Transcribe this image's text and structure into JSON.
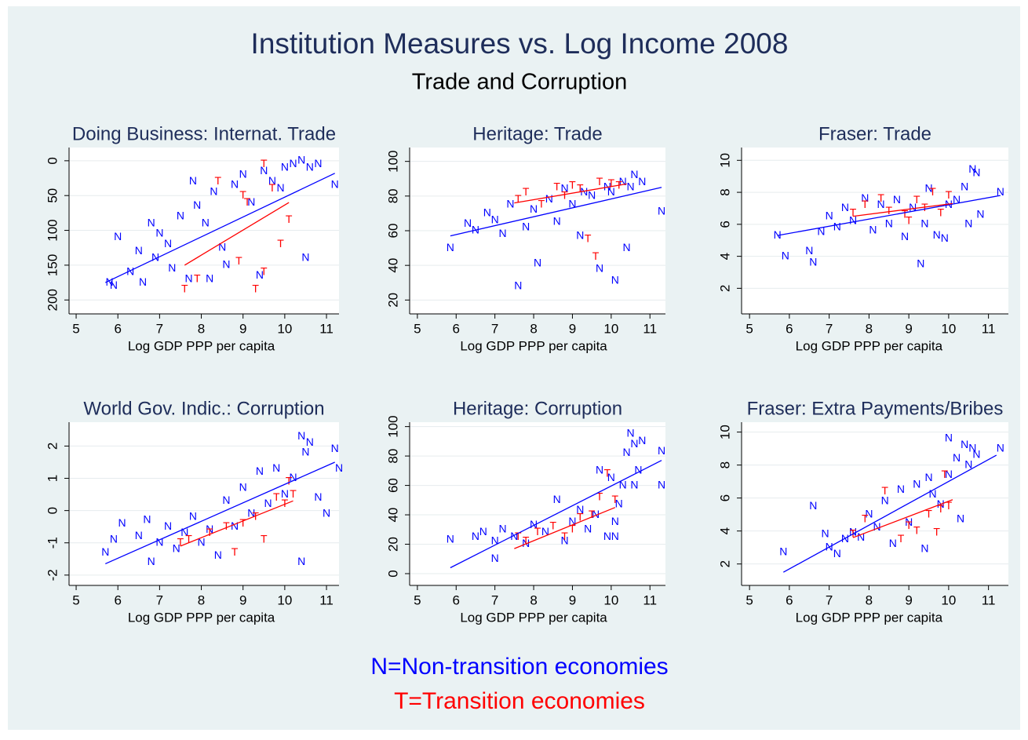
{
  "title": "Institution Measures vs. Log Income 2008",
  "subtitle": "Trade and Corruption",
  "legend": [
    {
      "text": "N=Non-transition economies",
      "color": "#0000ff"
    },
    {
      "text": "T=Transition economies",
      "color": "#ff0000"
    }
  ],
  "chart_data": [
    {
      "type": "scatter",
      "title": "Doing Business: Internat. Trade",
      "xlabel": "Log GDP PPP per capita",
      "xlim": [
        4.83,
        11.3
      ],
      "xticks": [
        5,
        6,
        7,
        8,
        9,
        10,
        11
      ],
      "ylim": [
        220,
        -19
      ],
      "yticks": [
        0,
        50,
        100,
        150,
        200
      ],
      "grid": true,
      "series": [
        {
          "name": "N",
          "color": "#0000ff",
          "x": [
            5.8,
            5.9,
            6.0,
            6.3,
            6.6,
            6.8,
            6.9,
            7.0,
            7.2,
            7.3,
            7.5,
            7.7,
            7.9,
            8.1,
            8.3,
            8.5,
            8.6,
            8.8,
            9.0,
            9.2,
            9.4,
            9.5,
            9.7,
            9.9,
            10.0,
            10.2,
            10.4,
            10.6,
            10.8,
            10.5,
            11.2,
            7.8,
            8.2,
            6.5
          ],
          "values": [
            175,
            180,
            110,
            160,
            175,
            90,
            140,
            105,
            120,
            155,
            80,
            170,
            65,
            90,
            45,
            125,
            150,
            35,
            20,
            60,
            165,
            15,
            30,
            40,
            10,
            5,
            0,
            10,
            5,
            140,
            35,
            30,
            170,
            130
          ]
        },
        {
          "name": "T",
          "color": "#ff0000",
          "x": [
            7.6,
            7.9,
            8.4,
            8.9,
            9.1,
            9.3,
            9.5,
            9.5,
            9.7,
            9.9,
            10.1,
            9.0
          ],
          "values": [
            185,
            170,
            30,
            145,
            60,
            185,
            160,
            5,
            40,
            120,
            85,
            50
          ]
        }
      ],
      "fits": [
        {
          "color": "#0000ff",
          "x": [
            5.7,
            11.2
          ],
          "values": [
            175,
            18
          ]
        },
        {
          "color": "#ff0000",
          "x": [
            7.6,
            10.1
          ],
          "values": [
            150,
            60
          ]
        }
      ]
    },
    {
      "type": "scatter",
      "title": "Heritage: Trade",
      "xlabel": "Log GDP PPP per capita",
      "xlim": [
        4.8,
        11.4
      ],
      "xticks": [
        5,
        6,
        7,
        8,
        9,
        10,
        11
      ],
      "ylim": [
        12,
        108
      ],
      "yticks": [
        20,
        40,
        60,
        80,
        100
      ],
      "grid": true,
      "series": [
        {
          "name": "N",
          "color": "#0000ff",
          "x": [
            5.85,
            6.3,
            6.5,
            6.8,
            7.0,
            7.2,
            7.4,
            7.6,
            7.8,
            8.0,
            8.1,
            8.4,
            8.6,
            8.8,
            9.0,
            9.2,
            9.5,
            9.7,
            9.9,
            10.0,
            10.1,
            10.3,
            10.4,
            10.5,
            10.6,
            10.8,
            11.3,
            9.3
          ],
          "values": [
            50,
            64,
            60,
            70,
            66,
            58,
            75,
            28,
            62,
            72,
            41,
            78,
            65,
            84,
            75,
            57,
            80,
            38,
            85,
            82,
            31,
            88,
            50,
            85,
            92,
            88,
            71,
            82
          ]
        },
        {
          "name": "T",
          "color": "#ff0000",
          "x": [
            7.6,
            7.8,
            8.2,
            8.6,
            8.8,
            9.0,
            9.2,
            9.4,
            9.6,
            9.7,
            10.0,
            10.2
          ],
          "values": [
            78,
            82,
            75,
            85,
            80,
            86,
            84,
            55,
            45,
            88,
            87,
            86
          ]
        }
      ],
      "fits": [
        {
          "color": "#0000ff",
          "x": [
            5.85,
            11.3
          ],
          "values": [
            57,
            85
          ]
        },
        {
          "color": "#ff0000",
          "x": [
            7.5,
            10.4
          ],
          "values": [
            76,
            87
          ]
        }
      ]
    },
    {
      "type": "scatter",
      "title": "Fraser: Trade",
      "xlabel": "Log GDP PPP per capita",
      "xlim": [
        4.8,
        11.5
      ],
      "xticks": [
        5,
        6,
        7,
        8,
        9,
        10,
        11
      ],
      "ylim": [
        0.4,
        10.8
      ],
      "yticks": [
        2,
        4,
        6,
        8,
        10
      ],
      "grid": true,
      "series": [
        {
          "name": "N",
          "color": "#0000ff",
          "x": [
            5.7,
            5.9,
            6.5,
            6.6,
            6.8,
            7.0,
            7.2,
            7.4,
            7.6,
            7.9,
            8.1,
            8.3,
            8.5,
            8.7,
            8.9,
            9.1,
            9.3,
            9.4,
            9.5,
            9.7,
            9.9,
            10.0,
            10.2,
            10.4,
            10.5,
            10.6,
            10.8,
            11.3,
            10.7
          ],
          "values": [
            5.3,
            4.0,
            4.3,
            3.6,
            5.5,
            6.5,
            5.8,
            7.0,
            6.2,
            7.6,
            5.6,
            7.2,
            6.0,
            7.5,
            5.2,
            7.0,
            3.5,
            6.0,
            8.2,
            5.3,
            5.1,
            7.2,
            7.5,
            8.3,
            6.0,
            9.4,
            6.6,
            8.0,
            9.2
          ]
        },
        {
          "name": "T",
          "color": "#ff0000",
          "x": [
            7.6,
            7.9,
            8.3,
            8.5,
            8.9,
            9.0,
            9.2,
            9.6,
            9.8,
            10.0,
            9.4
          ],
          "values": [
            6.7,
            7.2,
            7.6,
            6.8,
            6.6,
            6.2,
            7.5,
            8.0,
            6.7,
            7.8,
            7.0
          ]
        }
      ],
      "fits": [
        {
          "color": "#0000ff",
          "x": [
            5.7,
            11.3
          ],
          "values": [
            5.3,
            7.8
          ]
        },
        {
          "color": "#ff0000",
          "x": [
            7.6,
            10.1
          ],
          "values": [
            6.5,
            7.3
          ]
        }
      ]
    },
    {
      "type": "scatter",
      "title": "World Gov. Indic.: Corruption",
      "xlabel": "Log GDP PPP per capita",
      "xlim": [
        4.83,
        11.3
      ],
      "xticks": [
        5,
        6,
        7,
        8,
        9,
        10,
        11
      ],
      "ylim": [
        -2.32,
        2.74
      ],
      "yticks": [
        -2,
        -1,
        0,
        1,
        2
      ],
      "grid": true,
      "series": [
        {
          "name": "N",
          "color": "#0000ff",
          "x": [
            5.7,
            5.9,
            6.1,
            6.5,
            6.7,
            6.8,
            7.0,
            7.2,
            7.4,
            7.6,
            7.8,
            8.0,
            8.2,
            8.4,
            8.6,
            8.8,
            9.0,
            9.2,
            9.4,
            9.6,
            9.8,
            10.0,
            10.2,
            10.4,
            10.5,
            10.6,
            10.8,
            11.0,
            11.2,
            11.3,
            10.4
          ],
          "values": [
            -1.3,
            -0.9,
            -0.4,
            -0.8,
            -0.3,
            -1.6,
            -1.0,
            -0.5,
            -1.2,
            -0.7,
            -0.2,
            -1.0,
            -0.6,
            -1.4,
            0.3,
            -0.5,
            0.7,
            -0.1,
            1.2,
            0.2,
            1.3,
            0.5,
            1.0,
            2.3,
            1.8,
            2.1,
            0.4,
            -0.1,
            1.9,
            1.3,
            -1.6
          ]
        },
        {
          "name": "T",
          "color": "#ff0000",
          "x": [
            7.5,
            7.7,
            8.2,
            8.6,
            8.8,
            9.0,
            9.3,
            9.5,
            9.8,
            10.0,
            10.1,
            10.2
          ],
          "values": [
            -1.0,
            -0.9,
            -0.7,
            -0.5,
            -1.3,
            -0.4,
            -0.2,
            -0.9,
            0.4,
            0.2,
            0.9,
            0.5
          ]
        }
      ],
      "fits": [
        {
          "color": "#0000ff",
          "x": [
            5.7,
            11.2
          ],
          "values": [
            -1.65,
            1.5
          ]
        },
        {
          "color": "#ff0000",
          "x": [
            7.5,
            10.2
          ],
          "values": [
            -1.1,
            0.3
          ]
        }
      ]
    },
    {
      "type": "scatter",
      "title": "Heritage: Corruption",
      "xlabel": "Log GDP PPP per capita",
      "xlim": [
        4.8,
        11.4
      ],
      "xticks": [
        5,
        6,
        7,
        8,
        9,
        10,
        11
      ],
      "ylim": [
        -8,
        103
      ],
      "yticks": [
        0,
        20,
        40,
        60,
        80,
        100
      ],
      "grid": true,
      "series": [
        {
          "name": "N",
          "color": "#0000ff",
          "x": [
            5.85,
            6.5,
            6.7,
            7.0,
            7.0,
            7.2,
            7.5,
            7.8,
            8.0,
            8.3,
            8.6,
            8.8,
            9.0,
            9.2,
            9.4,
            9.6,
            9.7,
            9.9,
            10.0,
            10.1,
            10.2,
            10.3,
            10.4,
            10.5,
            10.6,
            10.7,
            10.8,
            11.3,
            11.3,
            10.1,
            10.6
          ],
          "values": [
            23,
            25,
            28,
            22,
            10,
            30,
            25,
            20,
            33,
            28,
            50,
            22,
            35,
            43,
            30,
            40,
            70,
            25,
            65,
            35,
            47,
            60,
            82,
            95,
            88,
            70,
            90,
            83,
            60,
            25,
            60
          ]
        },
        {
          "name": "T",
          "color": "#ff0000",
          "x": [
            7.6,
            7.8,
            8.1,
            8.5,
            8.8,
            9.0,
            9.2,
            9.5,
            9.7,
            9.9,
            10.1
          ],
          "values": [
            25,
            22,
            28,
            32,
            25,
            30,
            38,
            40,
            52,
            68,
            50
          ]
        }
      ],
      "fits": [
        {
          "color": "#0000ff",
          "x": [
            5.85,
            11.3
          ],
          "values": [
            4,
            77
          ]
        },
        {
          "color": "#ff0000",
          "x": [
            7.5,
            10.1
          ],
          "values": [
            17,
            45
          ]
        }
      ]
    },
    {
      "type": "scatter",
      "title": "Fraser: Extra Payments/Bribes",
      "xlabel": "Log GDP PPP per capita",
      "xlim": [
        4.8,
        11.5
      ],
      "xticks": [
        5,
        6,
        7,
        8,
        9,
        10,
        11
      ],
      "ylim": [
        0.7,
        10.6
      ],
      "yticks": [
        2,
        4,
        6,
        8,
        10
      ],
      "grid": true,
      "series": [
        {
          "name": "N",
          "color": "#0000ff",
          "x": [
            5.85,
            6.6,
            6.9,
            7.0,
            7.2,
            7.4,
            7.6,
            7.8,
            8.0,
            8.2,
            8.4,
            8.6,
            8.8,
            9.0,
            9.2,
            9.4,
            9.6,
            9.8,
            10.0,
            10.2,
            10.3,
            10.4,
            10.5,
            10.6,
            10.7,
            11.3,
            10.0,
            9.5
          ],
          "values": [
            2.7,
            5.5,
            3.8,
            3.0,
            2.6,
            3.5,
            3.9,
            3.6,
            5.0,
            4.2,
            5.8,
            3.2,
            6.5,
            4.5,
            6.8,
            2.9,
            6.2,
            5.6,
            7.4,
            8.4,
            4.7,
            9.2,
            8.0,
            9.0,
            8.6,
            9.0,
            9.6,
            7.2
          ]
        },
        {
          "name": "T",
          "color": "#ff0000",
          "x": [
            7.6,
            7.9,
            8.4,
            8.8,
            9.0,
            9.2,
            9.5,
            9.7,
            9.8,
            9.9,
            10.0
          ],
          "values": [
            3.8,
            4.7,
            6.4,
            3.5,
            4.3,
            4.0,
            5.0,
            3.9,
            5.3,
            7.4,
            5.5
          ]
        }
      ],
      "fits": [
        {
          "color": "#0000ff",
          "x": [
            5.85,
            11.2
          ],
          "values": [
            1.5,
            8.6
          ]
        },
        {
          "color": "#ff0000",
          "x": [
            7.6,
            10.1
          ],
          "values": [
            3.6,
            5.9
          ]
        }
      ]
    }
  ]
}
